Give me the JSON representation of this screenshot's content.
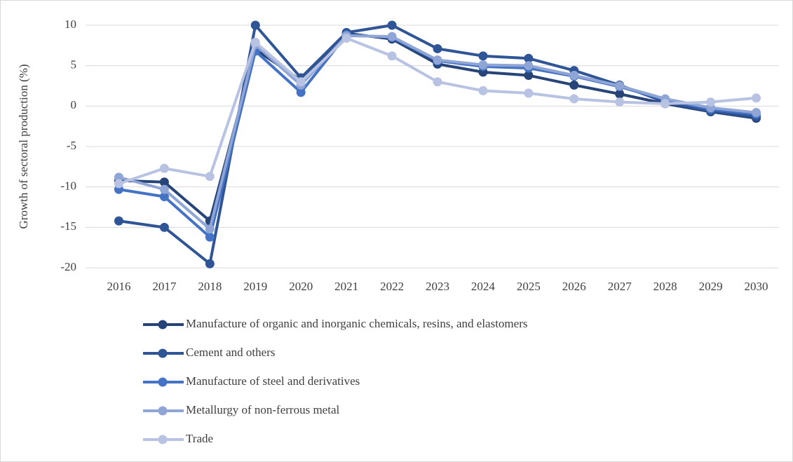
{
  "chart_data": {
    "type": "line",
    "y_label": "Growth of sectoral production (%)",
    "categories": [
      "2016",
      "2017",
      "2018",
      "2019",
      "2020",
      "2021",
      "2022",
      "2023",
      "2024",
      "2025",
      "2026",
      "2027",
      "2028",
      "2029",
      "2030"
    ],
    "ylim": [
      -20,
      10
    ],
    "yticks": [
      -20,
      -15,
      -10,
      -5,
      0,
      5,
      10
    ],
    "grid": true,
    "legend": "bottom",
    "series": [
      {
        "name": "Manufacture of organic and inorganic chemicals, resins, and elastomers",
        "color": "#264478",
        "values": [
          -9.2,
          -9.4,
          -14.2,
          7.0,
          3.2,
          9.0,
          8.3,
          5.2,
          4.2,
          3.8,
          2.6,
          1.5,
          0.3,
          -0.7,
          -1.5
        ]
      },
      {
        "name": "Cement and others",
        "color": "#2f5597",
        "values": [
          -14.2,
          -15.0,
          -19.5,
          10.0,
          3.5,
          9.1,
          10.0,
          7.1,
          6.2,
          5.9,
          4.4,
          2.6,
          0.5,
          -0.6,
          -1.3
        ]
      },
      {
        "name": "Manufacture of steel and derivatives",
        "color": "#4472c4",
        "values": [
          -10.3,
          -11.2,
          -16.2,
          6.8,
          1.7,
          8.8,
          8.5,
          5.6,
          4.9,
          4.7,
          3.7,
          2.4,
          0.8,
          -0.4,
          -1.0
        ]
      },
      {
        "name": "Metallurgy of non-ferrous metal",
        "color": "#8fa5d6",
        "values": [
          -8.8,
          -10.3,
          -15.2,
          7.6,
          2.6,
          8.7,
          8.6,
          5.7,
          5.1,
          5.0,
          3.8,
          2.5,
          0.9,
          -0.2,
          -0.8
        ]
      },
      {
        "name": "Trade",
        "color": "#b8c3e3",
        "values": [
          -9.6,
          -7.7,
          -8.7,
          7.9,
          3.0,
          8.4,
          6.2,
          3.0,
          1.9,
          1.6,
          0.9,
          0.5,
          0.3,
          0.5,
          1.0
        ]
      }
    ]
  }
}
